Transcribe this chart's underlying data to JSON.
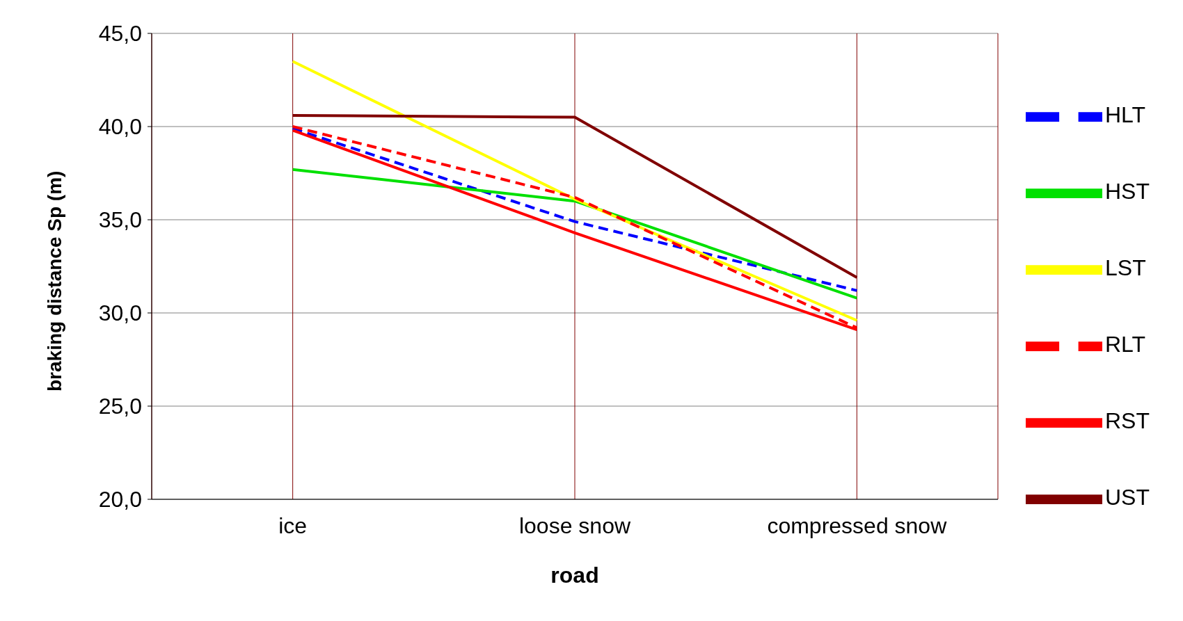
{
  "chart_data": {
    "type": "line",
    "xlabel": "road",
    "ylabel": "braking distance Sp (m)",
    "categories": [
      "ice",
      "loose snow",
      "compressed snow"
    ],
    "ylim": [
      20,
      45
    ],
    "yticks": [
      {
        "value": 20,
        "label": "20,0"
      },
      {
        "value": 25,
        "label": "25,0"
      },
      {
        "value": 30,
        "label": "30,0"
      },
      {
        "value": 35,
        "label": "35,0"
      },
      {
        "value": 40,
        "label": "40,0"
      },
      {
        "value": 45,
        "label": "45,0"
      }
    ],
    "grid": true,
    "legend": "right",
    "marker": "none",
    "series": [
      {
        "name": "HLT",
        "color": "#0000ff",
        "line_style": "dashed",
        "values": [
          39.9,
          34.9,
          31.2
        ]
      },
      {
        "name": "HST",
        "color": "#00e000",
        "line_style": "solid",
        "values": [
          37.7,
          36.0,
          30.8
        ]
      },
      {
        "name": "LST",
        "color": "#ffff00",
        "line_style": "solid",
        "values": [
          43.5,
          36.1,
          29.6
        ]
      },
      {
        "name": "RST",
        "color": "#ff0000",
        "line_style": "solid",
        "values": [
          39.8,
          34.3,
          29.1
        ]
      },
      {
        "name": "RLT",
        "color": "#ff0000",
        "line_style": "dashed",
        "values": [
          40.0,
          36.2,
          29.2
        ]
      },
      {
        "name": "UST",
        "color": "#800000",
        "line_style": "solid",
        "values": [
          40.6,
          40.5,
          31.9
        ]
      }
    ]
  }
}
